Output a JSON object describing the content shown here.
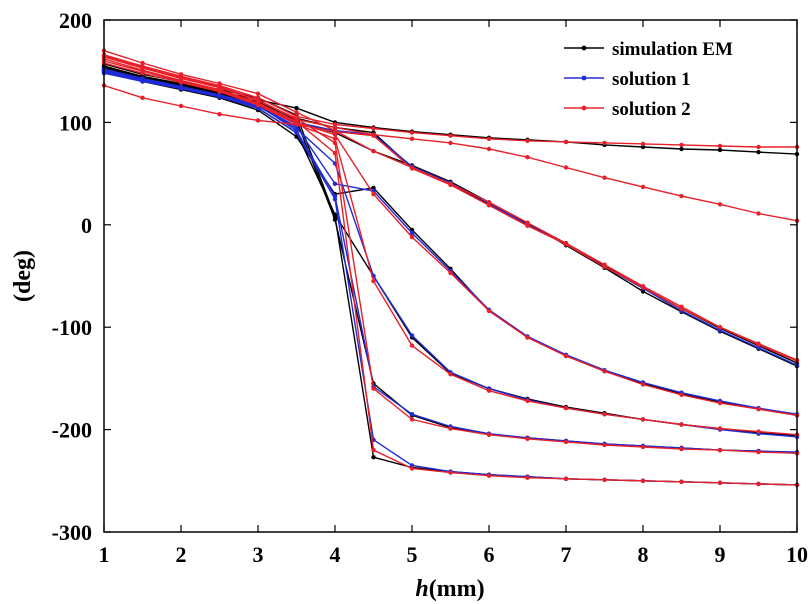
{
  "chart_data": {
    "type": "line",
    "xlabel_italic": "h",
    "xlabel_rest": "(mm)",
    "ylabel": "(deg)",
    "xlim": [
      1,
      10
    ],
    "ylim": [
      -300,
      200
    ],
    "xticks": [
      1,
      2,
      3,
      4,
      5,
      6,
      7,
      8,
      9,
      10
    ],
    "yticks": [
      200,
      100,
      0,
      -100,
      -200,
      -300
    ],
    "grid": false,
    "legend_position": "top-right",
    "x": [
      1,
      1.5,
      2,
      2.5,
      3,
      3.5,
      4,
      4.5,
      5,
      5.5,
      6,
      6.5,
      7,
      7.5,
      8,
      8.5,
      9,
      9.5,
      10
    ],
    "series": [
      {
        "name": "simulation EM",
        "color": "#000000",
        "curves": [
          [
            155,
            145,
            138,
            130,
            122,
            114,
            100,
            95,
            91,
            88,
            85,
            83,
            81,
            78,
            76,
            74,
            73,
            71,
            69
          ],
          [
            152,
            142,
            135,
            128,
            118,
            100,
            90,
            72,
            58,
            42,
            22,
            2,
            -20,
            -42,
            -65,
            -85,
            -104,
            -121,
            -138
          ],
          [
            150,
            140,
            132,
            124,
            112,
            86,
            30,
            36,
            -5,
            -43,
            -84,
            -110,
            -128,
            -143,
            -155,
            -165,
            -173,
            -180,
            -186
          ],
          [
            151,
            141,
            133,
            125,
            114,
            90,
            10,
            -50,
            -110,
            -145,
            -160,
            -170,
            -178,
            -184,
            -190,
            -195,
            -199,
            -203,
            -206
          ],
          [
            153,
            143,
            136,
            128,
            119,
            102,
            5,
            -155,
            -186,
            -198,
            -205,
            -208,
            -211,
            -214,
            -216,
            -218,
            -220,
            -221,
            -223
          ],
          [
            157,
            147,
            140,
            132,
            124,
            107,
            8,
            -227,
            -237,
            -241,
            -244,
            -246,
            -248,
            -249,
            -250,
            -251,
            -252,
            -253,
            -254
          ],
          [
            154,
            144,
            137,
            129,
            120,
            104,
            95,
            90,
            56,
            40,
            20,
            1,
            -18,
            -40,
            -61,
            -82,
            -101,
            -118,
            -135
          ]
        ]
      },
      {
        "name": "solution 1",
        "color": "#1f2bd6",
        "curves": [
          [
            148,
            140,
            134,
            126,
            116,
            94,
            60,
            -50,
            -108,
            -144,
            -160,
            -171,
            -179,
            -185,
            -190,
            -195,
            -200,
            -204,
            -207
          ],
          [
            150,
            141,
            133,
            125,
            114,
            90,
            25,
            -210,
            -235,
            -241,
            -244,
            -246,
            -248,
            -249,
            -250,
            -251,
            -252,
            -253,
            -254
          ],
          [
            152,
            143,
            135,
            127,
            117,
            92,
            28,
            -158,
            -185,
            -197,
            -204,
            -208,
            -211,
            -214,
            -216,
            -218,
            -220,
            -221,
            -222
          ],
          [
            151,
            142,
            134,
            126,
            116,
            96,
            40,
            33,
            -8,
            -45,
            -83,
            -109,
            -127,
            -142,
            -154,
            -164,
            -172,
            -179,
            -185
          ],
          [
            149,
            140,
            133,
            125,
            115,
            100,
            92,
            88,
            57,
            41,
            21,
            0,
            -19,
            -41,
            -62,
            -84,
            -103,
            -120,
            -137
          ]
        ]
      },
      {
        "name": "solution 2",
        "color": "#e8202a",
        "curves": [
          [
            170,
            158,
            147,
            138,
            128,
            110,
            92,
            72,
            56,
            40,
            22,
            2,
            -18,
            -39,
            -60,
            -80,
            -100,
            -117,
            -133
          ],
          [
            166,
            155,
            145,
            136,
            124,
            106,
            98,
            94,
            90,
            87,
            84,
            82,
            81,
            80,
            79,
            78,
            77,
            76,
            76
          ],
          [
            136,
            124,
            116,
            108,
            102,
            98,
            84,
            -55,
            -118,
            -146,
            -162,
            -172,
            -179,
            -185,
            -190,
            -195,
            -199,
            -202,
            -205
          ],
          [
            164,
            153,
            143,
            134,
            121,
            104,
            80,
            -160,
            -190,
            -199,
            -205,
            -209,
            -212,
            -215,
            -217,
            -219,
            -220,
            -222,
            -223
          ],
          [
            162,
            151,
            141,
            132,
            119,
            101,
            70,
            -220,
            -238,
            -242,
            -245,
            -247,
            -248,
            -249,
            -250,
            -251,
            -252,
            -253,
            -254
          ],
          [
            160,
            150,
            140,
            131,
            118,
            100,
            88,
            30,
            -12,
            -47,
            -84,
            -110,
            -128,
            -143,
            -156,
            -166,
            -174,
            -180,
            -186
          ],
          [
            158,
            148,
            139,
            130,
            117,
            98,
            91,
            87,
            55,
            39,
            19,
            -1,
            -19,
            -41,
            -61,
            -82,
            -100,
            -116,
            -132
          ],
          [
            165,
            154,
            144,
            135,
            122,
            103,
            95,
            88,
            84,
            80,
            74,
            66,
            56,
            46,
            37,
            28,
            20,
            11,
            4
          ]
        ]
      }
    ]
  }
}
